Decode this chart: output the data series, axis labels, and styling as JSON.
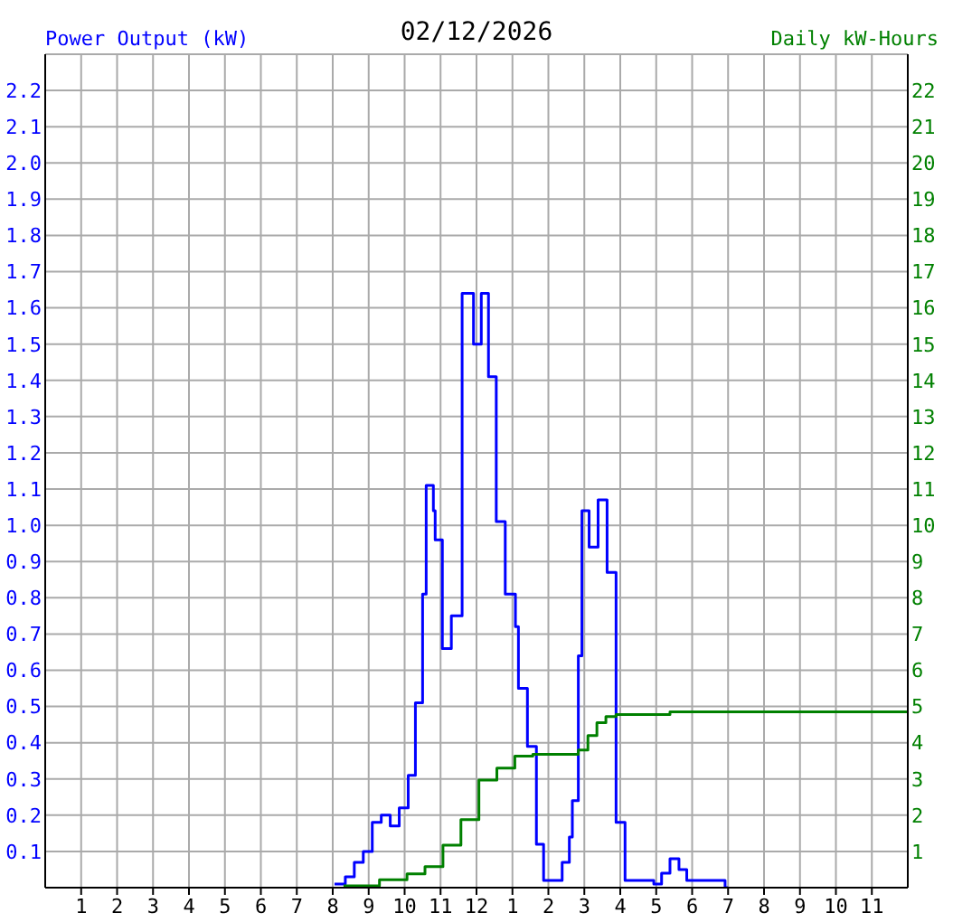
{
  "chart_data": {
    "type": "step",
    "title": "02/12/2026",
    "ylabel": "Power Output (kW)",
    "y2label": "Daily kW-Hours",
    "xlim": [
      "2026-02-12T00:00",
      "2026-02-13T00:00"
    ],
    "xticks": [
      {
        "value": "2026-02-12T01:00",
        "label": "1"
      },
      {
        "value": "2026-02-12T02:00",
        "label": "2"
      },
      {
        "value": "2026-02-12T03:00",
        "label": "3"
      },
      {
        "value": "2026-02-12T04:00",
        "label": "4"
      },
      {
        "value": "2026-02-12T05:00",
        "label": "5"
      },
      {
        "value": "2026-02-12T06:00",
        "label": "6"
      },
      {
        "value": "2026-02-12T07:00",
        "label": "7"
      },
      {
        "value": "2026-02-12T08:00",
        "label": "8"
      },
      {
        "value": "2026-02-12T09:00",
        "label": "9"
      },
      {
        "value": "2026-02-12T10:00",
        "label": "10"
      },
      {
        "value": "2026-02-12T11:00",
        "label": "11"
      },
      {
        "value": "2026-02-12T12:00",
        "label": "12"
      },
      {
        "value": "2026-02-12T13:00",
        "label": "1"
      },
      {
        "value": "2026-02-12T14:00",
        "label": "2"
      },
      {
        "value": "2026-02-12T15:00",
        "label": "3"
      },
      {
        "value": "2026-02-12T16:00",
        "label": "4"
      },
      {
        "value": "2026-02-12T17:00",
        "label": "5"
      },
      {
        "value": "2026-02-12T18:00",
        "label": "6"
      },
      {
        "value": "2026-02-12T19:00",
        "label": "7"
      },
      {
        "value": "2026-02-12T20:00",
        "label": "8"
      },
      {
        "value": "2026-02-12T21:00",
        "label": "9"
      },
      {
        "value": "2026-02-12T22:00",
        "label": "10"
      },
      {
        "value": "2026-02-12T23:00",
        "label": "11"
      }
    ],
    "ylim": [
      0,
      2.3
    ],
    "yticks": [
      0.1,
      0.2,
      0.3,
      0.4,
      0.5,
      0.6,
      0.7,
      0.8,
      0.9,
      {
        "value": 1,
        "label": "1.0"
      },
      1.1,
      1.2,
      1.3,
      1.4,
      1.5,
      1.6,
      1.7,
      1.8,
      1.9,
      {
        "value": 2,
        "label": "2.0"
      },
      2.1,
      2.2
    ],
    "y2lim": [
      0,
      23
    ],
    "y2ticks": [
      1,
      2,
      3,
      4,
      5,
      6,
      7,
      8,
      9,
      10,
      11,
      12,
      13,
      14,
      15,
      16,
      17,
      18,
      19,
      20,
      21,
      22
    ],
    "grid": true,
    "series": [
      {
        "color": "#0000ff",
        "x": [
          "2026-02-12T08:03",
          "2026-02-12T08:21",
          "2026-02-12T08:36",
          "2026-02-12T08:51",
          "2026-02-12T09:06",
          "2026-02-12T09:21",
          "2026-02-12T09:36",
          "2026-02-12T09:51",
          "2026-02-12T10:06",
          "2026-02-12T10:18",
          "2026-02-12T10:30",
          "2026-02-12T10:36",
          "2026-02-12T10:48",
          "2026-02-12T10:51",
          "2026-02-12T11:03",
          "2026-02-12T11:18",
          "2026-02-12T11:36",
          "2026-02-12T11:55",
          "2026-02-12T12:08",
          "2026-02-12T12:20",
          "2026-02-12T12:33",
          "2026-02-12T12:48",
          "2026-02-12T13:05",
          "2026-02-12T13:10",
          "2026-02-12T13:25",
          "2026-02-12T13:40",
          "2026-02-12T13:52",
          "2026-02-12T14:23",
          "2026-02-12T14:35",
          "2026-02-12T14:40",
          "2026-02-12T14:50",
          "2026-02-12T14:56",
          "2026-02-12T15:08",
          "2026-02-12T15:23",
          "2026-02-12T15:38",
          "2026-02-12T15:53",
          "2026-02-12T16:08",
          "2026-02-12T16:56",
          "2026-02-12T17:09",
          "2026-02-12T17:23",
          "2026-02-12T17:38",
          "2026-02-12T17:51",
          "2026-02-12T18:06",
          "2026-02-12T18:55",
          "2026-02-12T19:00"
        ],
        "values": [
          0.01,
          0.03,
          0.07,
          0.1,
          0.18,
          0.2,
          0.17,
          0.22,
          0.31,
          0.51,
          0.81,
          1.11,
          1.04,
          0.96,
          0.66,
          0.75,
          1.64,
          1.5,
          1.64,
          1.41,
          1.01,
          0.81,
          0.72,
          0.55,
          0.39,
          0.12,
          0.02,
          0.07,
          0.14,
          0.24,
          0.64,
          1.04,
          0.94,
          1.07,
          0.87,
          0.18,
          0.02,
          0.01,
          0.04,
          0.08,
          0.05,
          0.02,
          0.02,
          0.0,
          0.0
        ]
      },
      {
        "color": "#008000",
        "axis": "y2",
        "x": [
          "2026-02-12T08:18",
          "2026-02-12T09:18",
          "2026-02-12T10:04",
          "2026-02-12T10:34",
          "2026-02-12T11:04",
          "2026-02-12T11:34",
          "2026-02-12T12:04",
          "2026-02-12T12:34",
          "2026-02-12T13:04",
          "2026-02-12T13:34",
          "2026-02-12T14:35",
          "2026-02-12T14:50",
          "2026-02-12T15:06",
          "2026-02-12T15:21",
          "2026-02-12T15:36",
          "2026-02-12T15:53",
          "2026-02-12T17:23",
          "2026-02-13T00:00"
        ],
        "values": [
          0.05,
          0.22,
          0.38,
          0.58,
          1.17,
          1.88,
          2.97,
          3.3,
          3.63,
          3.68,
          3.68,
          3.8,
          4.2,
          4.55,
          4.72,
          4.78,
          4.85,
          4.85
        ]
      }
    ]
  }
}
